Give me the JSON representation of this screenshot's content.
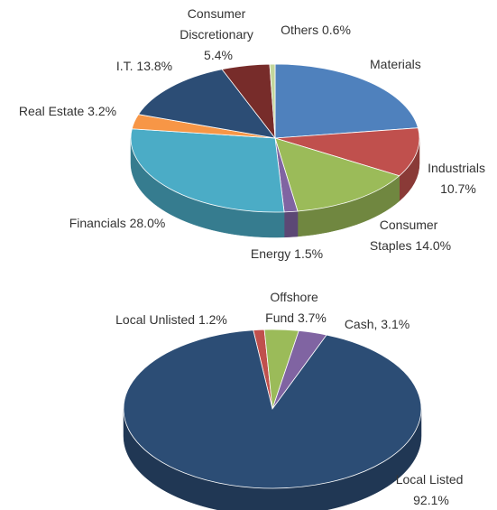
{
  "chart_data": [
    {
      "type": "pie",
      "categories": [
        "Materials 22.8%",
        "Industrials 10.7%",
        "Consumer Staples 14.0%",
        "Energy 1.5%",
        "Financials 28.0%",
        "Real Estate 3.2%",
        "I.T. 13.8%",
        "Consumer Discretionary 5.4%",
        "Others 0.6%"
      ],
      "values": [
        22.8,
        10.7,
        14.0,
        1.5,
        28.0,
        3.2,
        13.8,
        5.4,
        0.6
      ],
      "colors": [
        "#4f81bd",
        "#c0504d",
        "#9bbb59",
        "#8064a2",
        "#4bacc6",
        "#f79646",
        "#2c4d75",
        "#772c2a",
        "#c3d69b"
      ]
    },
    {
      "type": "pie",
      "categories": [
        "Local Unlisted 1.2%",
        "Offshore Fund 3.7%",
        "Cash, 3.1%",
        "Local Listed 92.1%"
      ],
      "values": [
        1.2,
        3.7,
        3.1,
        92.1
      ],
      "colors": [
        "#c0504d",
        "#9bbb59",
        "#8064a2",
        "#2c4d75"
      ]
    }
  ]
}
